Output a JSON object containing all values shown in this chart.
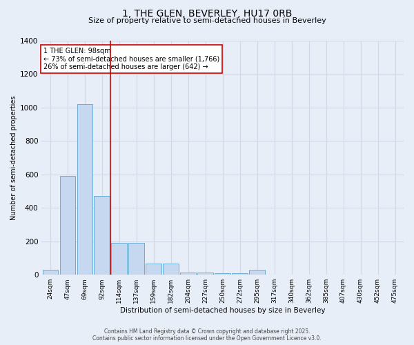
{
  "title_line1": "1, THE GLEN, BEVERLEY, HU17 0RB",
  "title_line2": "Size of property relative to semi-detached houses in Beverley",
  "xlabel": "Distribution of semi-detached houses by size in Beverley",
  "ylabel": "Number of semi-detached properties",
  "categories": [
    "24sqm",
    "47sqm",
    "69sqm",
    "92sqm",
    "114sqm",
    "137sqm",
    "159sqm",
    "182sqm",
    "204sqm",
    "227sqm",
    "250sqm",
    "272sqm",
    "295sqm",
    "317sqm",
    "340sqm",
    "362sqm",
    "385sqm",
    "407sqm",
    "430sqm",
    "452sqm",
    "475sqm"
  ],
  "values": [
    28,
    590,
    1020,
    470,
    190,
    190,
    65,
    65,
    12,
    12,
    10,
    10,
    30,
    0,
    0,
    0,
    0,
    0,
    0,
    0,
    0
  ],
  "bar_color": "#c5d8f0",
  "bar_edge_color": "#6baed6",
  "vline_x_index": 3,
  "vline_color": "#cc0000",
  "annotation_title": "1 THE GLEN: 98sqm",
  "annotation_line1": "← 73% of semi-detached houses are smaller (1,766)",
  "annotation_line2": "26% of semi-detached houses are larger (642) →",
  "annotation_box_color": "#ffffff",
  "annotation_box_edge": "#cc0000",
  "background_color": "#e8eef8",
  "grid_color": "#d0d8e8",
  "ylim": [
    0,
    1400
  ],
  "yticks": [
    0,
    200,
    400,
    600,
    800,
    1000,
    1200,
    1400
  ],
  "title_fontsize": 10,
  "subtitle_fontsize": 8,
  "footnote1": "Contains HM Land Registry data © Crown copyright and database right 2025.",
  "footnote2": "Contains public sector information licensed under the Open Government Licence v3.0."
}
